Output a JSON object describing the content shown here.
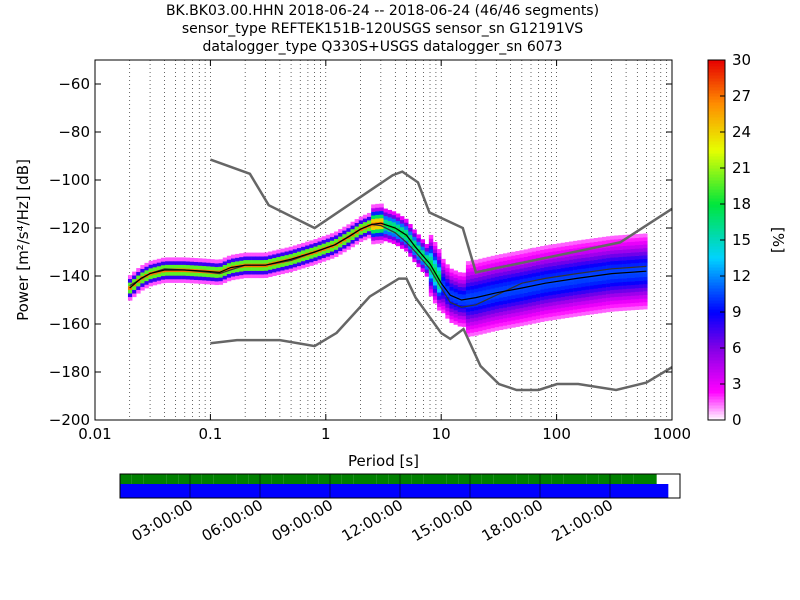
{
  "title_lines": [
    "BK.BK03.00.HHN   2018-06-24 -- 2018-06-24  (46/46 segments)",
    "sensor_type REFTEK151B-120USGS sensor_sn G12191VS",
    "datalogger_type Q330S+USGS datalogger_sn 6073"
  ],
  "chart_data": {
    "type": "heatmap",
    "xlabel": "Period [s]",
    "ylabel": "Power [m²/s⁴/Hz] [dB]",
    "x_scale": "log",
    "xlim": [
      0.01,
      1000
    ],
    "ylim": [
      -200,
      -50
    ],
    "x_ticks": [
      0.01,
      0.1,
      1,
      10,
      100,
      1000
    ],
    "x_tick_labels": [
      "0.01",
      "0.1",
      "1",
      "10",
      "100",
      "1000"
    ],
    "y_ticks": [
      -200,
      -180,
      -160,
      -140,
      -120,
      -100,
      -80,
      -60
    ],
    "y_tick_labels": [
      "−200",
      "−180",
      "−160",
      "−140",
      "−120",
      "−100",
      "−80",
      "−60"
    ],
    "grid": "dotted-vertical",
    "colorbar": {
      "label": "[%]",
      "range": [
        0,
        30
      ],
      "ticks": [
        0,
        3,
        6,
        9,
        12,
        15,
        18,
        21,
        24,
        27,
        30
      ]
    },
    "nlnm": {
      "x": [
        0.1,
        0.17,
        0.4,
        0.8,
        1.24,
        2.4,
        4.3,
        5,
        6,
        10,
        12,
        15.6,
        21.9,
        31.6,
        45,
        70,
        101,
        154,
        328,
        600,
        1000
      ],
      "y": [
        -168,
        -166.7,
        -166.7,
        -169.2,
        -163.7,
        -148.6,
        -141.1,
        -141.1,
        -149,
        -163.8,
        -166.2,
        -162.1,
        -177.5,
        -185,
        -187.5,
        -187.5,
        -185,
        -185,
        -187.5,
        -184.4,
        -178
      ]
    },
    "nhnm": {
      "x": [
        0.1,
        0.22,
        0.32,
        0.8,
        3.8,
        4.6,
        6.3,
        7.9,
        15.4,
        20,
        354.8,
        1000
      ],
      "y": [
        -91.5,
        -97.4,
        -110.5,
        -120,
        -98,
        -96.5,
        -101,
        -113.5,
        -120,
        -138.5,
        -126,
        -112
      ]
    },
    "mean": {
      "x": [
        0.02,
        0.025,
        0.03,
        0.04,
        0.06,
        0.09,
        0.12,
        0.15,
        0.2,
        0.3,
        0.5,
        0.8,
        1.2,
        1.6,
        2.0,
        2.5,
        3.0,
        4.0,
        5.0,
        6.0,
        8.0,
        10,
        12,
        15,
        20,
        30,
        50,
        80,
        150,
        300,
        600
      ],
      "y": [
        -145,
        -141,
        -139,
        -137.5,
        -137.5,
        -138,
        -138.5,
        -136.5,
        -135.5,
        -135.5,
        -133,
        -130,
        -127,
        -123.5,
        -120.5,
        -118.5,
        -118,
        -120,
        -123,
        -128,
        -135,
        -143,
        -148,
        -150,
        -149,
        -147,
        -145,
        -143,
        -141,
        -139,
        -138
      ]
    },
    "mode": {
      "x": [
        0.02,
        0.03,
        0.04,
        0.06,
        0.1,
        0.12,
        0.2,
        0.3,
        0.5,
        0.8,
        1.2,
        2.0,
        2.5,
        3.0,
        4.0,
        5.0,
        6.0,
        8.0,
        10,
        12,
        15,
        20,
        30,
        50,
        80,
        150,
        300,
        600
      ],
      "y": [
        -144,
        -139,
        -137,
        -137.5,
        -138.5,
        -139,
        -135.5,
        -135.5,
        -133.5,
        -130,
        -127,
        -120.5,
        -118.5,
        -119,
        -122,
        -126,
        -130,
        -137,
        -145,
        -151,
        -153,
        -152,
        -148,
        -143,
        -141,
        -139,
        -137,
        -136
      ]
    },
    "time_coverage": {
      "ticks": [
        "03:00:00",
        "06:00:00",
        "09:00:00",
        "12:00:00",
        "15:00:00",
        "18:00:00",
        "21:00:00"
      ],
      "tick_hours": [
        3,
        6,
        9,
        12,
        15,
        18,
        21
      ],
      "segments_start_hours": [
        0,
        0.5,
        1,
        1.5,
        2,
        2.5,
        3,
        3.5,
        4,
        4.5,
        5,
        5.5,
        6,
        6.5,
        7,
        7.5,
        8,
        8.5,
        9,
        9.5,
        10,
        10.5,
        11,
        11.5,
        12,
        12.5,
        13,
        13.5,
        14,
        14.5,
        15,
        15.5,
        16,
        16.5,
        17,
        17.5,
        18,
        18.5,
        19,
        19.5,
        20,
        20.5,
        21,
        21.5,
        22,
        22.5
      ],
      "data_end_hours": 23.5,
      "colors": {
        "segments": "#008000",
        "data": "#0000ff"
      }
    }
  }
}
